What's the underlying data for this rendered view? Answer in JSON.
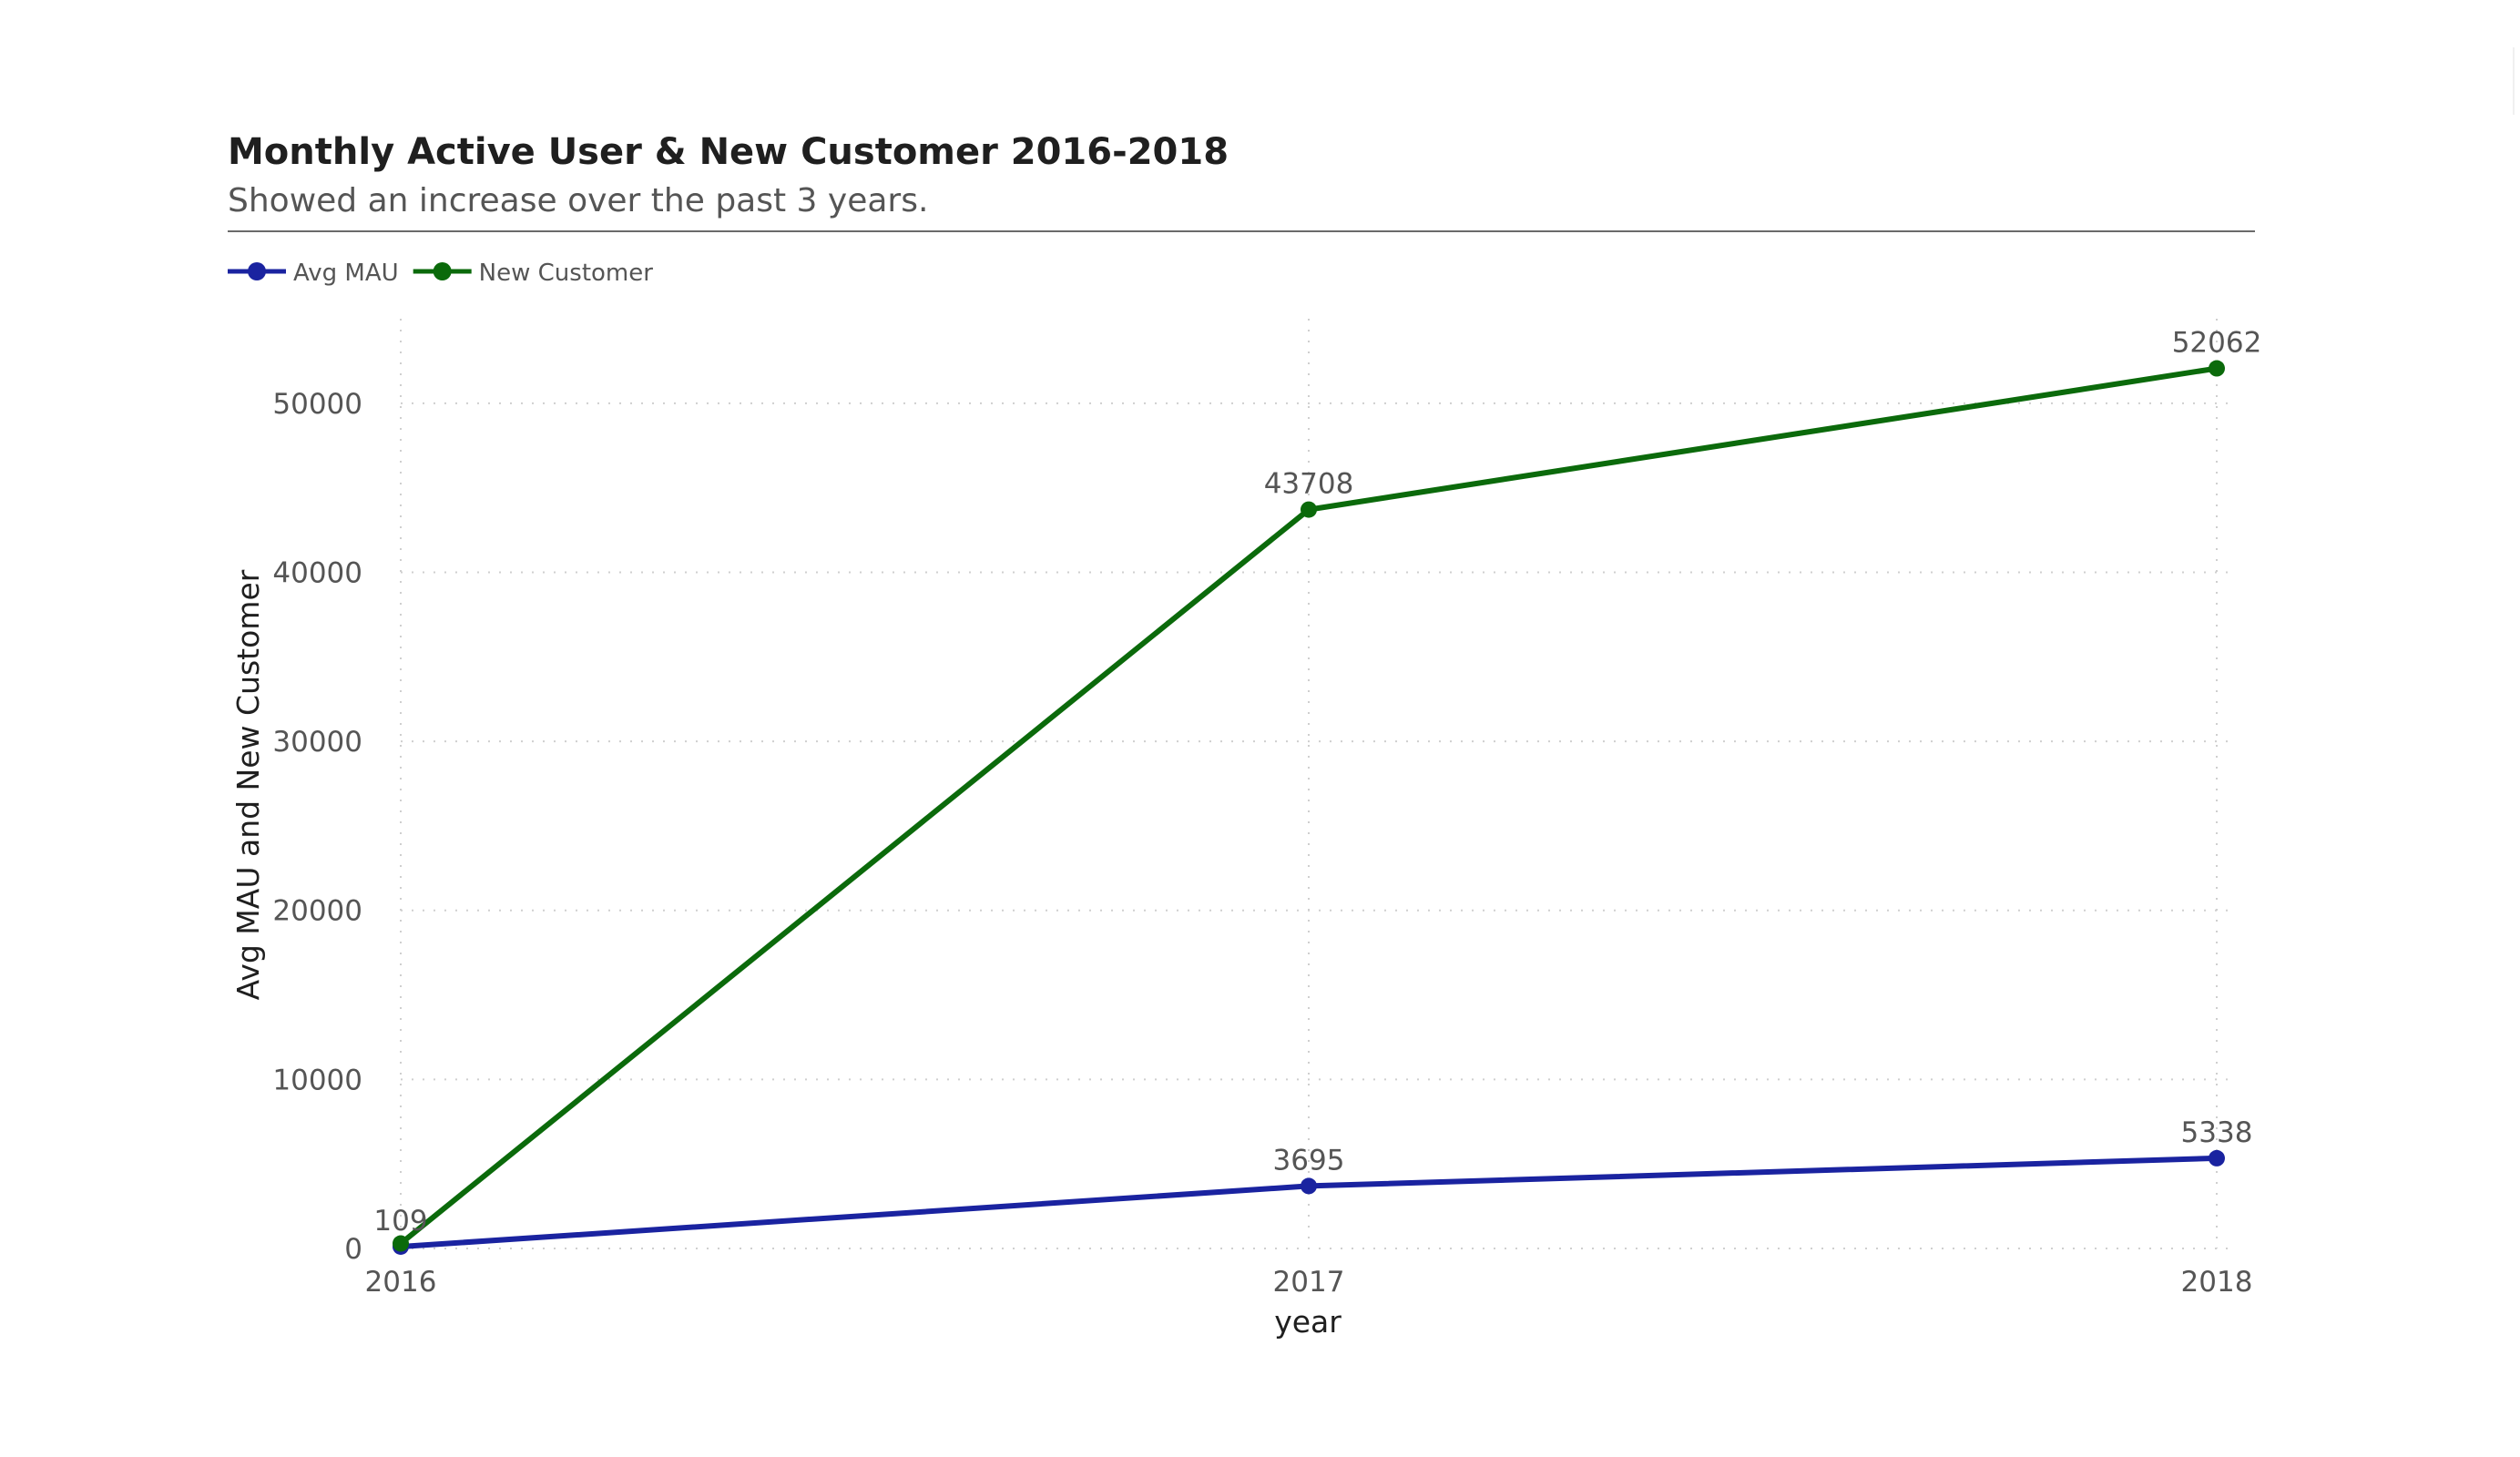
{
  "chart_data": {
    "type": "line",
    "title": "Monthly Active User & New Customer 2016-2018",
    "subtitle": "Showed an increase over the past 3 years.",
    "xlabel": "year",
    "ylabel": "Avg MAU and New Customer",
    "x": [
      "2016",
      "2017",
      "2018"
    ],
    "ylim": [
      0,
      55000
    ],
    "yticks": [
      0,
      10000,
      20000,
      30000,
      40000,
      50000
    ],
    "grid": true,
    "legend": "top-left",
    "series": [
      {
        "name": "Avg MAU",
        "color": "#1a23a0",
        "values": [
          109,
          3695,
          5338
        ],
        "labels": [
          "109",
          "3695",
          "5338"
        ]
      },
      {
        "name": "New Customer",
        "color": "#0b6a0b",
        "values": [
          295,
          43708,
          52062
        ],
        "labels": [
          "",
          "43708",
          "52062"
        ]
      }
    ]
  }
}
